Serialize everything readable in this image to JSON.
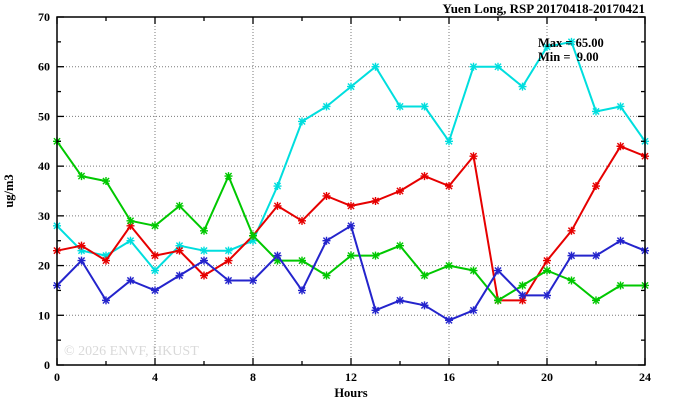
{
  "title": "Yuen Long, RSP 20170418-20170421",
  "legend": {
    "max_label": "Max = 65.00",
    "min_label": "Min =  9.00"
  },
  "watermark": "© 2026 ENVF, HKUST",
  "chart_data": {
    "type": "line",
    "title": "Yuen Long, RSP 20170418-20170421",
    "xlabel": "Hours",
    "ylabel": "ug/m3",
    "xlim": [
      0,
      24
    ],
    "ylim": [
      0,
      70
    ],
    "grid": true,
    "legend_position": "top-right-inside",
    "x_major_ticks": [
      0,
      4,
      8,
      12,
      16,
      20,
      24
    ],
    "x_minor_ticks": [
      2,
      6,
      10,
      14,
      18,
      22
    ],
    "y_major_ticks": [
      0,
      10,
      20,
      30,
      40,
      50,
      60,
      70
    ],
    "y_minor_ticks": [
      5,
      15,
      25,
      35,
      45,
      55,
      65
    ],
    "x_tick_labels": [
      "0",
      "4",
      "8",
      "12",
      "16",
      "20",
      "24"
    ],
    "y_tick_labels": [
      "0",
      "10",
      "20",
      "30",
      "40",
      "50",
      "60",
      "70"
    ],
    "x_gridlines": [
      4,
      8,
      12,
      16,
      20
    ],
    "y_gridlines": [
      10,
      20,
      30,
      40,
      50,
      60
    ],
    "x": [
      0,
      1,
      2,
      3,
      4,
      5,
      6,
      7,
      8,
      9,
      10,
      11,
      12,
      13,
      14,
      15,
      16,
      17,
      18,
      19,
      20,
      21,
      22,
      23,
      24
    ],
    "series": [
      {
        "name": "cyan-series",
        "color": "#00dede",
        "values": [
          28,
          23,
          22,
          25,
          19,
          24,
          23,
          23,
          25,
          36,
          49,
          52,
          56,
          60,
          52,
          52,
          45,
          60,
          60,
          56,
          64,
          65,
          51,
          52,
          45
        ]
      },
      {
        "name": "red-series",
        "color": "#e60000",
        "values": [
          23,
          24,
          21,
          28,
          22,
          23,
          18,
          21,
          26,
          32,
          29,
          34,
          32,
          33,
          35,
          38,
          36,
          42,
          13,
          13,
          21,
          27,
          36,
          44,
          42
        ]
      },
      {
        "name": "green-series",
        "color": "#00c800",
        "values": [
          45,
          38,
          37,
          29,
          28,
          32,
          27,
          38,
          26,
          21,
          21,
          18,
          22,
          22,
          24,
          18,
          20,
          19,
          13,
          16,
          19,
          17,
          13,
          16,
          16
        ]
      },
      {
        "name": "blue-series",
        "color": "#2424cc",
        "values": [
          16,
          21,
          13,
          17,
          15,
          18,
          21,
          17,
          17,
          22,
          15,
          25,
          28,
          11,
          13,
          12,
          9,
          11,
          19,
          14,
          14,
          22,
          22,
          25,
          23
        ]
      }
    ],
    "stats": {
      "max": 65.0,
      "min": 9.0
    }
  }
}
